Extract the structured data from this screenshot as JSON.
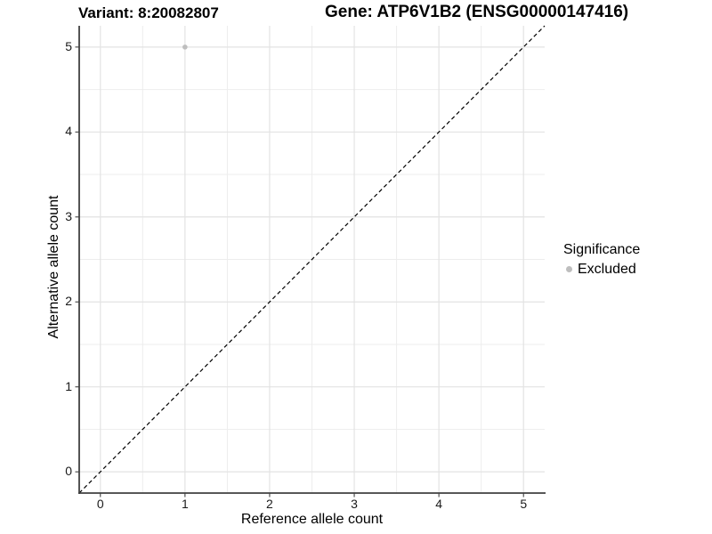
{
  "chart_data": {
    "type": "scatter",
    "title_left": "Variant: 8:20082807",
    "title_right": "Gene: ATP6V1B2 (ENSG00000147416)",
    "xlabel": "Reference allele count",
    "ylabel": "Alternative allele count",
    "xlim": [
      -0.25,
      5.25
    ],
    "ylim": [
      -0.25,
      5.25
    ],
    "x_ticks": [
      0,
      1,
      2,
      3,
      4,
      5
    ],
    "y_ticks": [
      0,
      1,
      2,
      3,
      4,
      5
    ],
    "minor_ticks": [
      0.5,
      1.5,
      2.5,
      3.5,
      4.5
    ],
    "grid": true,
    "points": [
      {
        "x": 1,
        "y": 5,
        "series": "Excluded"
      }
    ],
    "reference_line": {
      "style": "dashed",
      "slope": 1,
      "intercept": 0,
      "from": [
        -0.25,
        -0.25
      ],
      "to": [
        5.25,
        5.25
      ]
    },
    "legend": {
      "title": "Significance",
      "position": "right",
      "entries": [
        {
          "label": "Excluded",
          "color": "#bebebe"
        }
      ]
    },
    "colors": {
      "point": "#bebebe",
      "grid_major": "#e3e3e3",
      "grid_minor": "#ededed",
      "axis": "#404040",
      "reference_line": "#000000",
      "tick_text": "#1a1a1a"
    }
  }
}
